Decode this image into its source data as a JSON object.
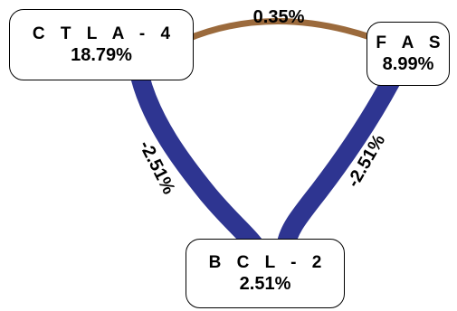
{
  "colors": {
    "positive_edge": "#9b6a3c",
    "negative_edge": "#2e3591",
    "node_border": "#000000",
    "node_fill": "#ffffff"
  },
  "nodes": {
    "ctla4": {
      "name": "C T L A - 4",
      "value": "18.79%"
    },
    "fas": {
      "name": "F A S",
      "value": "8.99%"
    },
    "bcl2": {
      "name": "B C L - 2",
      "value": "2.51%"
    }
  },
  "edges": [
    {
      "from": "ctla4",
      "to": "fas",
      "label": "0.35%",
      "sign": "positive"
    },
    {
      "from": "ctla4",
      "to": "bcl2",
      "label": "-2.51%",
      "sign": "negative"
    },
    {
      "from": "fas",
      "to": "bcl2",
      "label": "-2.51%",
      "sign": "negative"
    }
  ]
}
